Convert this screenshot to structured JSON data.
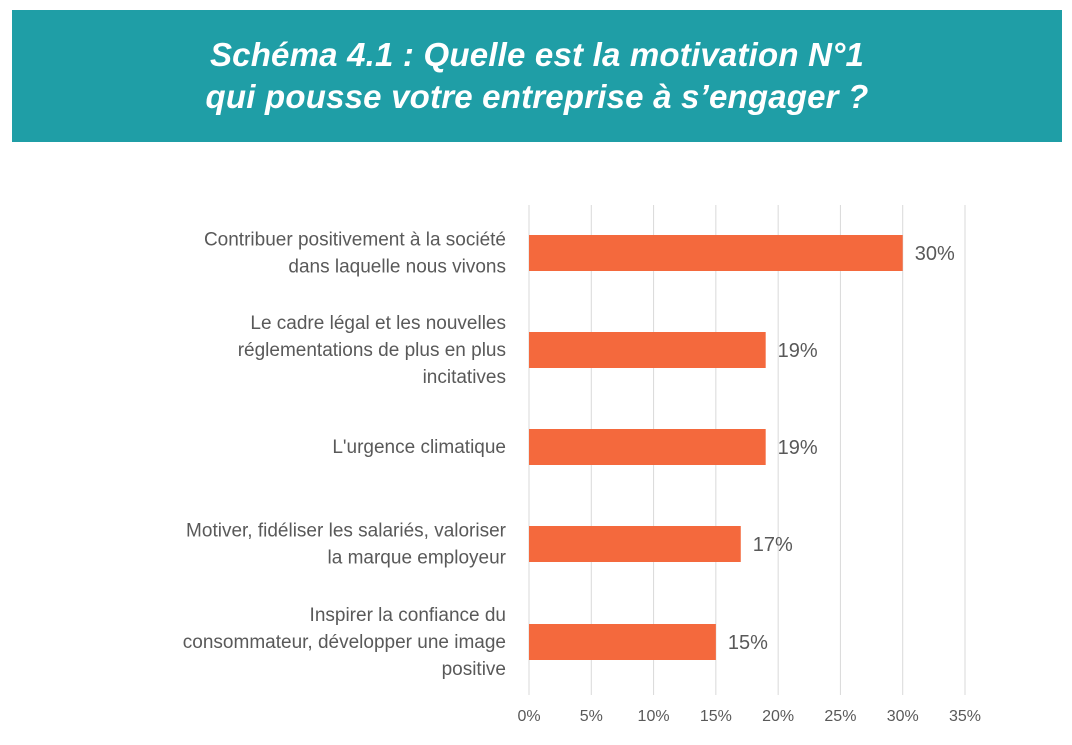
{
  "chart_data": {
    "type": "bar",
    "orientation": "horizontal",
    "title": [
      "Schéma 4.1 : Quelle est la motivation N°1",
      "qui pousse votre entreprise à s’engager ?"
    ],
    "categories": [
      [
        "Contribuer positivement à la société",
        "dans laquelle nous vivons"
      ],
      [
        "Le cadre légal et les nouvelles",
        "réglementations de plus en plus",
        "incitatives"
      ],
      [
        "L'urgence climatique"
      ],
      [
        "Motiver, fidéliser les salariés, valoriser",
        "la marque employeur"
      ],
      [
        "Inspirer la confiance du",
        "consommateur, développer une image",
        "positive"
      ]
    ],
    "values": [
      30,
      19,
      19,
      17,
      15
    ],
    "value_labels": [
      "30%",
      "19%",
      "19%",
      "17%",
      "15%"
    ],
    "xlim": [
      0,
      35
    ],
    "x_ticks": [
      "0%",
      "5%",
      "10%",
      "15%",
      "20%",
      "25%",
      "30%",
      "35%"
    ],
    "grid": "vertical",
    "bar_color": "#f4693d",
    "grid_color": "#d9d9d9",
    "header_color": "#1f9ea6"
  }
}
